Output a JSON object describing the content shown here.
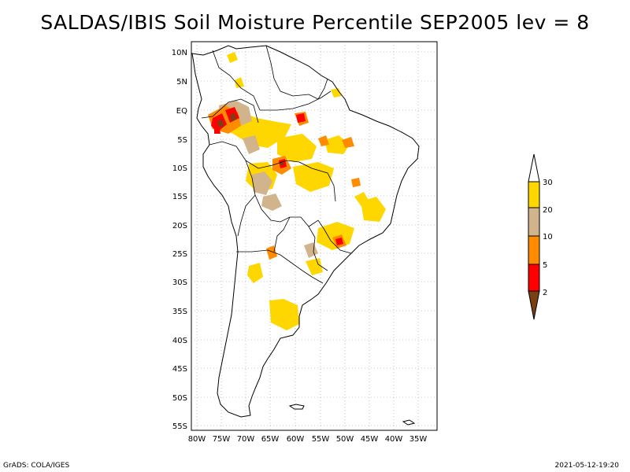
{
  "title": "SALDAS/IBIS Soil Moisture Percentile SEP2005 lev = 8",
  "axes": {
    "lat_labels": [
      "10N",
      "5N",
      "EQ",
      "5S",
      "10S",
      "15S",
      "20S",
      "25S",
      "30S",
      "35S",
      "40S",
      "45S",
      "50S",
      "55S"
    ],
    "lon_labels": [
      "80W",
      "75W",
      "70W",
      "65W",
      "60W",
      "55W",
      "50W",
      "45W",
      "40W",
      "35W"
    ]
  },
  "legend": {
    "labels": [
      "2",
      "5",
      "10",
      "20",
      "30"
    ],
    "colors": {
      "below_2": "#7a4014",
      "2_5": "#ff0000",
      "5_10": "#ff8c00",
      "10_20": "#d2b48c",
      "20_30": "#ffd700",
      "above_30": "#ffffff"
    }
  },
  "footer": {
    "left": "GrADS: COLA/IGES",
    "right": "2021-05-12-19:20"
  }
}
